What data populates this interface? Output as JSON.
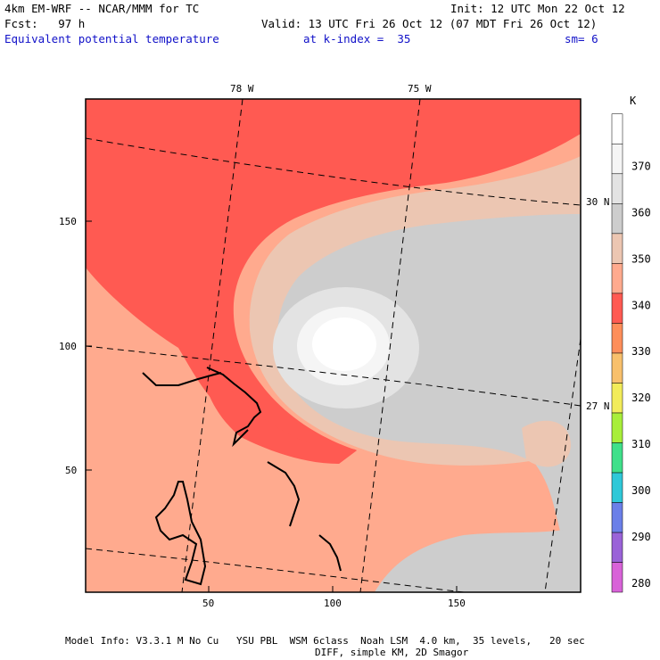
{
  "header": {
    "model_line": "4km EM-WRF -- NCAR/MMM for TC",
    "init_line": "Init: 12 UTC Mon 22 Oct 12",
    "fcst_line": "Fcst:   97 h",
    "valid_line": "Valid: 13 UTC Fri 26 Oct 12 (07 MDT Fri 26 Oct 12)",
    "field_name": "Equivalent potential temperature",
    "level_text": "at k-index =  35",
    "smooth_text": "sm= 6"
  },
  "map": {
    "meridian_labels": [
      "78 W",
      "75 W"
    ],
    "parallel_labels": [
      "30 N",
      "27 N"
    ],
    "x_ticks": [
      "50",
      "100",
      "150"
    ],
    "y_ticks": [
      "150",
      "100",
      "50"
    ],
    "colors": {
      "fill_red": "#ff5a52",
      "fill_salmon": "#ffaa8e",
      "fill_tan": "#ecc6b2",
      "fill_gray": "#cdcdcd",
      "fill_lightgray": "#e3e3e3",
      "fill_white": "#ffffff",
      "coast": "#000000"
    }
  },
  "colorbar": {
    "unit": "K",
    "labels": [
      "370",
      "360",
      "350",
      "340",
      "330",
      "320",
      "310",
      "300",
      "290",
      "280"
    ],
    "colors": [
      "#d863d8",
      "#9a63d8",
      "#6b7fe8",
      "#2fc8d8",
      "#3fe08a",
      "#a8ee3a",
      "#f2ec5a",
      "#f8c06c",
      "#fe8e5a",
      "#ff5a52",
      "#ffaa8e",
      "#ecc6b2",
      "#cdcdcd",
      "#e3e3e3",
      "#f5f5f5",
      "#ffffff"
    ]
  },
  "footer": {
    "line1": "Model Info: V3.3.1 M No Cu   YSU PBL  WSM 6class  Noah LSM  4.0 km,  35 levels,   20 sec",
    "line2": "DIFF, simple KM, 2D Smagor"
  }
}
